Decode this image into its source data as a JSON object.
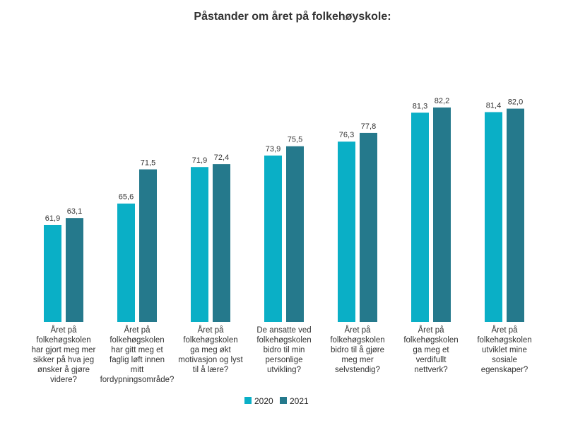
{
  "chart_data": {
    "type": "bar",
    "title": "Påstander om året på folkehøyskole:",
    "xlabel": "",
    "ylabel": "",
    "ylim": [
      45,
      93
    ],
    "grid": false,
    "legend_position": "bottom-center",
    "categories": [
      [
        "Året på",
        "folkehøgskolen",
        "har gjort meg mer",
        "sikker på hva jeg",
        "ønsker å gjøre",
        "videre?"
      ],
      [
        "Året på",
        "folkehøgskolen",
        "har gitt meg et",
        "faglig løft innen",
        "mitt",
        "fordypningsområde?"
      ],
      [
        "Året på",
        "folkehøgskolen",
        "ga meg økt",
        "motivasjon og lyst",
        "til å lære?"
      ],
      [
        "De ansatte ved",
        "folkehøgskolen",
        "bidro til min",
        "personlige",
        "utvikling?"
      ],
      [
        "Året på",
        "folkehøgskolen",
        "bidro til å gjøre",
        "meg mer",
        "selvstendig?"
      ],
      [
        "Året på",
        "folkehøgskolen",
        "ga meg et",
        "verdifullt",
        "nettverk?"
      ],
      [
        "Året på",
        "folkehøgskolen",
        "utviklet mine",
        "sosiale",
        "egenskaper?"
      ]
    ],
    "series": [
      {
        "name": "2020",
        "color": "#0aafc6",
        "values": [
          61.9,
          65.6,
          71.9,
          73.9,
          76.3,
          81.3,
          81.4
        ],
        "labels": [
          "61,9",
          "65,6",
          "71,9",
          "73,9",
          "76,3",
          "81,3",
          "81,4"
        ]
      },
      {
        "name": "2021",
        "color": "#25798c",
        "values": [
          63.1,
          71.5,
          72.4,
          75.5,
          77.8,
          82.2,
          82.0
        ],
        "labels": [
          "63,1",
          "71,5",
          "72,4",
          "75,5",
          "77,8",
          "82,2",
          "82,0"
        ]
      }
    ]
  }
}
